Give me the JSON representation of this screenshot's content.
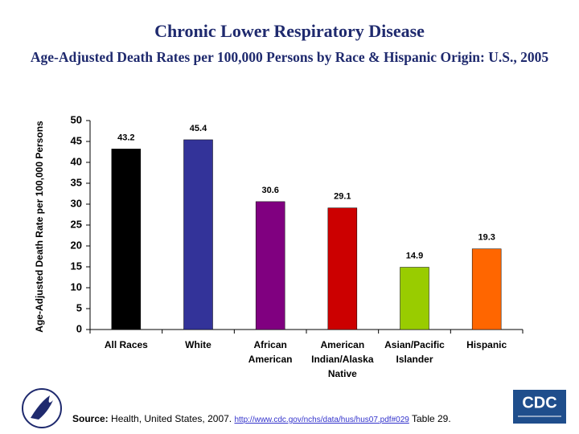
{
  "chart_data": {
    "type": "bar",
    "title": "Chronic Lower Respiratory Disease",
    "subtitle": "Age-Adjusted Death Rates per 100,000 Persons by Race & Hispanic Origin: U.S., 2005",
    "y_label": "Age-Adjusted Death Rate per 100,000 Persons",
    "categories": [
      "All Races",
      "White",
      "African American",
      "American Indian/Alaska Native",
      "Asian/Pacific Islander",
      "Hispanic"
    ],
    "values": [
      43.2,
      45.4,
      30.6,
      29.1,
      14.9,
      19.3
    ],
    "colors": [
      "#000000",
      "#333399",
      "#800080",
      "#cc0000",
      "#99cc00",
      "#ff6600"
    ],
    "ylim": [
      0,
      50
    ],
    "yticks": [
      0,
      5,
      10,
      15,
      20,
      25,
      30,
      35,
      40,
      45,
      50
    ],
    "grid": false
  },
  "footer": {
    "source_label": "Source:",
    "source_text": "Health, United States, 2007.",
    "url": "http://www.cdc.gov/nchs/data/hus/hus07.pdf#029",
    "table": "Table 29.",
    "logo": "CDC"
  }
}
